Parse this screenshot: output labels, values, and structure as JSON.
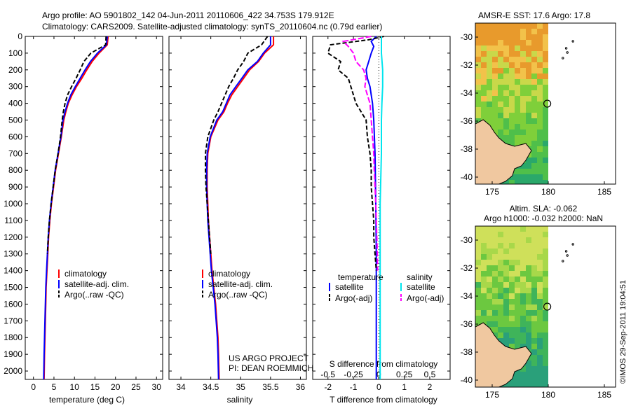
{
  "header": {
    "line1": "Argo profile: AO 5901802_142 04-Jun-2011 20110606_422 34.753S 179.912E",
    "line2": "Climatology: CARS2009. Satellite-adjusted climatology: synTS_20110604.nc (0.79d earlier)"
  },
  "footer_credit": "©IMOS 29-Sep-2011 19:04:51",
  "project_note": {
    "line1": "US ARGO PROJECT",
    "line2": "PI: DEAN ROEMMICH"
  },
  "colors": {
    "climatology": "#ff0000",
    "satellite": "#0000ff",
    "argo": "#000000",
    "satellite_sal": "#00e5ee",
    "argo_sal": "#ff00ff"
  },
  "chart_data": [
    {
      "id": "temperature",
      "type": "line",
      "xlabel": "temperature (deg C)",
      "ylabel": "",
      "xlim": [
        -2,
        31.5
      ],
      "ylim": [
        2050,
        0
      ],
      "xticks": [
        0,
        5,
        10,
        15,
        20,
        25,
        30
      ],
      "yticks": [
        0,
        100,
        200,
        300,
        400,
        500,
        600,
        700,
        800,
        900,
        1000,
        1100,
        1200,
        1300,
        1400,
        1500,
        1600,
        1700,
        1800,
        1900,
        2000
      ],
      "legend": [
        "climatology",
        "satellite-adj. clim.",
        "Argo(..raw -QC)"
      ],
      "legend_placement": "lower-middle",
      "series": [
        {
          "name": "climatology",
          "color": "#ff0000",
          "dash": "",
          "depth": [
            0,
            50,
            100,
            150,
            200,
            250,
            300,
            350,
            400,
            450,
            500,
            600,
            700,
            800,
            900,
            1000,
            1100,
            1200,
            1300,
            1400,
            1500,
            1600,
            1700,
            1800,
            1900,
            2050
          ],
          "values": [
            18.2,
            18.0,
            16.0,
            14.3,
            13.0,
            11.8,
            10.5,
            9.4,
            8.5,
            7.9,
            7.4,
            6.8,
            6.1,
            5.4,
            4.9,
            4.4,
            4.0,
            3.7,
            3.5,
            3.3,
            3.1,
            3.0,
            2.9,
            2.8,
            2.7,
            2.6
          ]
        },
        {
          "name": "satellite-adj. clim.",
          "color": "#0000ff",
          "dash": "",
          "depth": [
            0,
            50,
            100,
            150,
            200,
            250,
            300,
            350,
            400,
            450,
            500,
            600,
            700,
            800,
            900,
            1000,
            1100,
            1200,
            1300,
            1400,
            1500,
            1600,
            1700,
            1800,
            1900,
            2050
          ],
          "values": [
            18.0,
            17.8,
            15.6,
            13.9,
            12.6,
            11.4,
            10.2,
            9.1,
            8.3,
            7.7,
            7.2,
            6.7,
            6.0,
            5.3,
            4.8,
            4.3,
            3.9,
            3.6,
            3.4,
            3.2,
            3.0,
            2.9,
            2.8,
            2.7,
            2.6,
            2.5
          ]
        },
        {
          "name": "Argo(..raw -QC)",
          "color": "#000000",
          "dash": "6,3",
          "depth": [
            0,
            50,
            100,
            150,
            200,
            250,
            300,
            350,
            400,
            450,
            500,
            600,
            700,
            800,
            900,
            1000,
            1100,
            1200,
            1300
          ],
          "values": [
            17.7,
            17.6,
            14.0,
            12.3,
            11.4,
            10.4,
            9.3,
            8.3,
            7.7,
            7.3,
            7.0,
            6.6,
            6.0,
            5.3,
            4.8,
            4.3,
            3.9,
            3.6,
            3.4
          ]
        }
      ]
    },
    {
      "id": "salinity",
      "type": "line",
      "xlabel": "salinity",
      "ylabel": "",
      "xlim": [
        33.8,
        36.1
      ],
      "ylim": [
        2050,
        0
      ],
      "xticks": [
        34,
        34.5,
        35,
        35.5,
        36
      ],
      "legend": [
        "climatology",
        "satellite-adj. clim.",
        "Argo(..raw -QC)"
      ],
      "legend_placement": "lower-middle",
      "series": [
        {
          "name": "climatology",
          "color": "#ff0000",
          "dash": "",
          "depth": [
            0,
            50,
            100,
            150,
            200,
            250,
            300,
            350,
            400,
            450,
            500,
            600,
            700,
            800,
            900,
            1000,
            1100,
            1200,
            1300,
            1400,
            1500,
            1600,
            1700,
            1800,
            1900,
            2050
          ],
          "values": [
            35.55,
            35.55,
            35.4,
            35.3,
            35.15,
            35.05,
            34.95,
            34.85,
            34.78,
            34.72,
            34.62,
            34.5,
            34.45,
            34.44,
            34.44,
            34.45,
            34.46,
            34.48,
            34.5,
            34.52,
            34.55,
            34.58,
            34.6,
            34.62,
            34.63,
            34.64
          ]
        },
        {
          "name": "satellite-adj. clim.",
          "color": "#0000ff",
          "dash": "",
          "depth": [
            0,
            50,
            100,
            150,
            200,
            250,
            300,
            350,
            400,
            450,
            500,
            600,
            700,
            800,
            900,
            1000,
            1100,
            1200,
            1300,
            1400,
            1500,
            1600,
            1700,
            1800,
            1900,
            2050
          ],
          "values": [
            35.5,
            35.5,
            35.38,
            35.28,
            35.12,
            35.02,
            34.92,
            34.82,
            34.76,
            34.7,
            34.6,
            34.49,
            34.44,
            34.43,
            34.43,
            34.44,
            34.45,
            34.47,
            34.49,
            34.51,
            34.54,
            34.57,
            34.59,
            34.61,
            34.62,
            34.63
          ]
        },
        {
          "name": "Argo(..raw -QC)",
          "color": "#000000",
          "dash": "6,3",
          "depth": [
            0,
            50,
            100,
            150,
            200,
            250,
            300,
            350,
            400,
            450,
            500,
            600,
            700,
            800,
            900,
            1000,
            1100,
            1200,
            1300
          ],
          "values": [
            35.45,
            35.35,
            35.12,
            35.05,
            34.95,
            34.88,
            34.8,
            34.74,
            34.68,
            34.62,
            34.55,
            34.45,
            34.41,
            34.41,
            34.42,
            34.44,
            34.46,
            34.48,
            34.5
          ]
        }
      ]
    },
    {
      "id": "differences",
      "type": "line",
      "xlabel": "T difference from climatology",
      "xlabel_top": "S difference from climatology",
      "xlim": [
        -2.6,
        2.8
      ],
      "ylim": [
        2050,
        0
      ],
      "xticks": [
        -2,
        -1,
        0,
        1,
        2
      ],
      "xtick_labels": [
        "-2",
        "-1",
        "0",
        "1",
        "2"
      ],
      "s_ticks": [
        -0.5,
        -0.25,
        0,
        0.25,
        0.5
      ],
      "s_tick_labels": [
        "-0.5",
        "-0.25",
        "0",
        "0.25",
        "0.5"
      ],
      "legend_headers": [
        "temperature",
        "salinity"
      ],
      "legend": [
        "satellite",
        "Argo(-adj)",
        "satellite",
        "Argo(-adj)"
      ],
      "legend_placement": "lower-middle",
      "series": [
        {
          "name": "satellite",
          "group": "temperature",
          "color": "#0000ff",
          "dash": "",
          "depth": [
            0,
            30,
            60,
            100,
            150,
            200,
            250,
            300,
            350,
            400,
            500,
            700,
            1000,
            1300,
            1600,
            2050
          ],
          "values": [
            -0.1,
            -0.3,
            -0.2,
            -0.3,
            -0.4,
            -0.5,
            -0.45,
            -0.35,
            -0.3,
            -0.25,
            -0.2,
            -0.15,
            -0.12,
            -0.1,
            -0.1,
            -0.1
          ]
        },
        {
          "name": "Argo(-adj)",
          "group": "temperature",
          "color": "#000000",
          "dash": "6,3",
          "depth": [
            0,
            20,
            50,
            100,
            150,
            200,
            250,
            300,
            350,
            400,
            500,
            600,
            700,
            800,
            900,
            1000,
            1100,
            1200,
            1300,
            1400
          ],
          "values": [
            0.2,
            -0.4,
            -1.9,
            -2.0,
            -1.5,
            -1.6,
            -1.2,
            -1.1,
            -1.0,
            -0.9,
            -0.5,
            -0.45,
            -0.35,
            -0.3,
            -0.3,
            -0.25,
            -0.2,
            -0.2,
            -0.15,
            -0.1
          ]
        },
        {
          "name": "satellite",
          "group": "salinity",
          "color": "#00e5ee",
          "dash": "",
          "depth": [
            0,
            50,
            100,
            200,
            300,
            400,
            500,
            700,
            1000,
            1300,
            1600,
            2050
          ],
          "values": [
            0.1,
            0.1,
            0.1,
            0.15,
            0.15,
            0.12,
            0.1,
            0.1,
            0.05,
            0.05,
            0.05,
            0.05
          ]
        },
        {
          "name": "Argo(-adj)",
          "group": "salinity",
          "color": "#ff00ff",
          "dash": "8,3",
          "depth": [
            0,
            30,
            60,
            100,
            150,
            200,
            250,
            300,
            350,
            400,
            500,
            600,
            700,
            800,
            900,
            1000,
            1100,
            1200,
            1300,
            1400
          ],
          "values": [
            -0.3,
            -1.4,
            -1.2,
            -1.0,
            -0.9,
            -0.6,
            -0.5,
            -0.55,
            -0.45,
            -0.35,
            -0.3,
            -0.25,
            -0.2,
            -0.18,
            -0.15,
            -0.12,
            -0.1,
            -0.08,
            -0.06,
            -0.05
          ]
        }
      ]
    },
    {
      "id": "map-sst",
      "type": "heatmap",
      "title": "AMSR-E SST: 17.6 Argo: 17.8",
      "xlim": [
        173.5,
        186
      ],
      "ylim": [
        -40.5,
        -29
      ],
      "xticks": [
        175,
        180,
        185
      ],
      "yticks": [
        -30,
        -32,
        -34,
        -36,
        -38,
        -40
      ],
      "marker": {
        "lon": 179.912,
        "lat": -34.753
      }
    },
    {
      "id": "map-sla",
      "type": "heatmap",
      "title": "Altim. SLA: -0.062",
      "subtitle": "Argo h1000: -0.032 h2000: NaN",
      "xlim": [
        173.5,
        186
      ],
      "ylim": [
        -40.5,
        -29
      ],
      "xticks": [
        175,
        180,
        185
      ],
      "yticks": [
        -30,
        -32,
        -34,
        -36,
        -38,
        -40
      ],
      "marker": {
        "lon": 179.912,
        "lat": -34.753
      }
    }
  ]
}
